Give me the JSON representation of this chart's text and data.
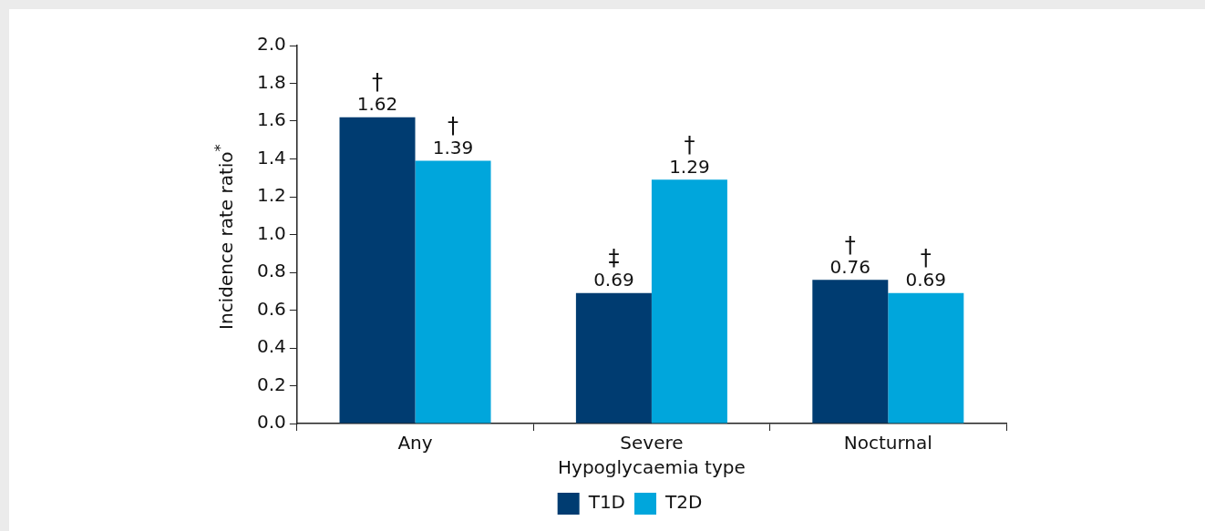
{
  "chart_data": {
    "type": "bar",
    "xlabel": "Hypoglycaemia type",
    "ylabel": "Incidence rate ratio$^{*}$",
    "categories": [
      "Any",
      "Severe",
      "Nocturnal"
    ],
    "series": [
      {
        "name": "T1D",
        "color": "#003c71",
        "values": [
          1.62,
          0.69,
          0.76
        ]
      },
      {
        "name": "T2D",
        "color": "#00a6dc",
        "values": [
          1.39,
          1.29,
          0.69
        ]
      }
    ],
    "ylim": [
      0,
      2
    ],
    "yticks": [
      {
        "value": 0,
        "label": "0.0"
      },
      {
        "value": 0.2,
        "label": "0.2"
      },
      {
        "value": 0.4,
        "label": "0.4"
      },
      {
        "value": 0.6,
        "label": "0.6"
      },
      {
        "value": 0.8,
        "label": "0.8"
      },
      {
        "value": 1,
        "label": "1.0"
      },
      {
        "value": 1.2,
        "label": "1.2"
      },
      {
        "value": 1.4,
        "label": "1.4"
      },
      {
        "value": 1.6,
        "label": "1.6"
      },
      {
        "value": 1.8,
        "label": "1.8"
      },
      {
        "value": 2,
        "label": "2.0"
      }
    ],
    "data_labels": true,
    "annotations": [
      {
        "text": "†",
        "x": "Any",
        "y": 1.39
      },
      {
        "text": "†",
        "x": "Any",
        "y": 1.62
      },
      {
        "text": "‡",
        "x": "Severe",
        "y": 0.69
      },
      {
        "text": "†",
        "x": "Severe",
        "y": 1.29
      },
      {
        "text": "†",
        "x": "Nocturnal",
        "y": 0.76
      },
      {
        "text": "†",
        "x": "Nocturnal",
        "y": 0.69
      }
    ],
    "grid": false,
    "legend": "bottom"
  }
}
